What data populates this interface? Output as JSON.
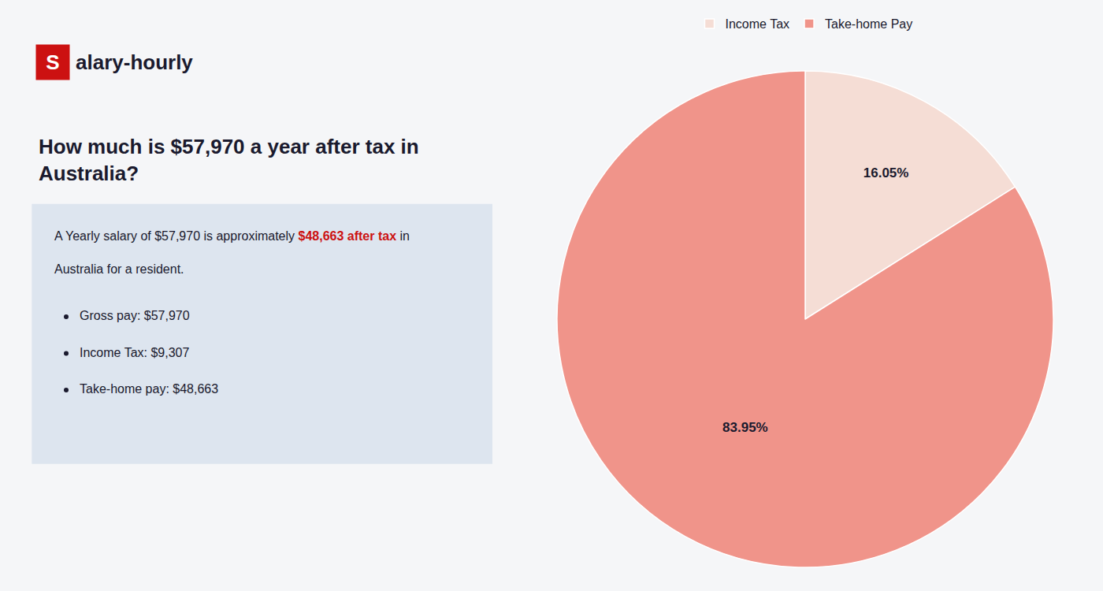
{
  "chart_data": {
    "type": "pie",
    "title": "How much is $57,970 a year after tax in\nAustralia?",
    "categories": [
      "Income Tax",
      "Take-home Pay"
    ],
    "values": [
      16.05,
      83.95
    ],
    "value_labels": [
      "16.05%",
      "83.95%"
    ],
    "colors": [
      "#f5ddd5",
      "#f0948a"
    ],
    "data_labels": true,
    "legend": "top",
    "annotations": [
      [
        {
          "text": "S",
          "color": "#cc1111"
        },
        {
          "text": "alary-hourly"
        }
      ],
      [
        {
          "text": "A Yearly salary of $57,970 is approximately "
        },
        {
          "text": "$48,663 after tax",
          "color": "#cc1111"
        },
        {
          "text": " in"
        }
      ],
      [
        {
          "text": "Australia for a resident."
        }
      ],
      [
        {
          "text": "Gross pay: $57,970"
        }
      ],
      [
        {
          "text": "Income Tax: $9,307"
        }
      ],
      [
        {
          "text": "Take-home pay: $48,663"
        }
      ]
    ]
  }
}
